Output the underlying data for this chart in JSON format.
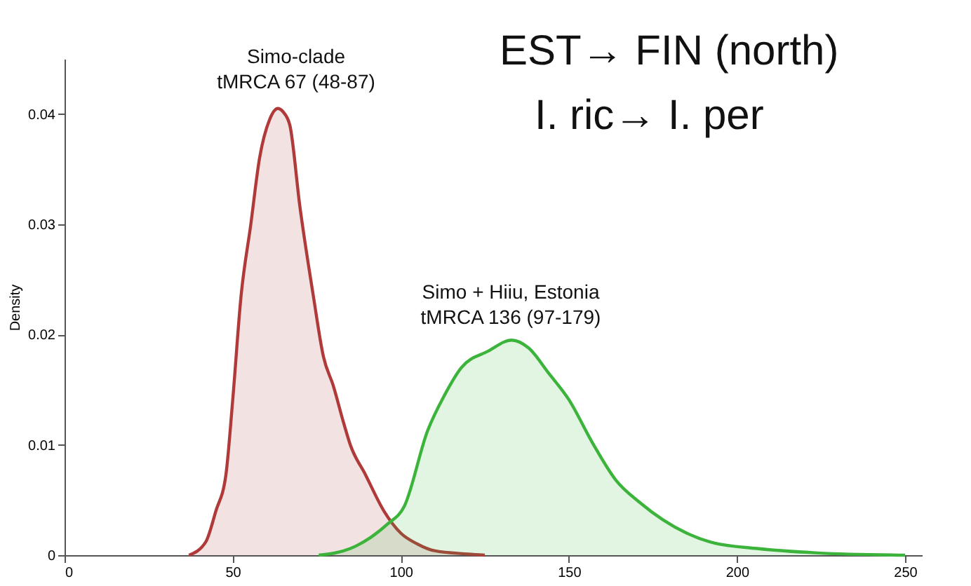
{
  "chart_data": {
    "type": "area",
    "ylabel": "Density",
    "xlim": [
      0,
      255
    ],
    "xticks": [
      0,
      50,
      100,
      150,
      200,
      250
    ],
    "ylim": [
      0,
      0.045
    ],
    "yticks": [
      0,
      0.01,
      0.02,
      0.03,
      0.04
    ],
    "grid": false,
    "series": [
      {
        "color": "#b03a3a",
        "x": [
          37,
          42,
          45,
          48,
          50,
          52.5,
          55.4,
          58,
          61,
          63.4,
          65,
          67,
          70,
          74,
          77,
          80,
          83,
          85,
          89.5,
          95,
          100,
          105,
          110,
          120,
          125
        ],
        "values": [
          0,
          0.0012,
          0.004,
          0.0073,
          0.014,
          0.0235,
          0.03,
          0.036,
          0.0395,
          0.0405,
          0.0402,
          0.039,
          0.0316,
          0.0235,
          0.018,
          0.0153,
          0.012,
          0.01,
          0.0073,
          0.004,
          0.002,
          0.001,
          0.0004,
          0.0001,
          0
        ]
      },
      {
        "color": "#3cb43c",
        "x": [
          75.6,
          85,
          91,
          96,
          101,
          108,
          113,
          118,
          126,
          133,
          138,
          144,
          150,
          157,
          164,
          171,
          178,
          185,
          192,
          206,
          224,
          250
        ],
        "values": [
          0,
          0.0006,
          0.0016,
          0.0028,
          0.0044,
          0.0113,
          0.0145,
          0.017,
          0.0185,
          0.0195,
          0.0188,
          0.0165,
          0.0141,
          0.0102,
          0.0068,
          0.0048,
          0.0032,
          0.002,
          0.0012,
          0.0006,
          0.0002,
          0
        ]
      }
    ],
    "annotations": [
      "Simo-clade\ntMRCA 67 (48-87)",
      "Simo + Hiiu, Estonia\ntMRCA 136 (97-179)",
      "EST→ FIN (north)",
      "I. ric→ I. per"
    ]
  }
}
